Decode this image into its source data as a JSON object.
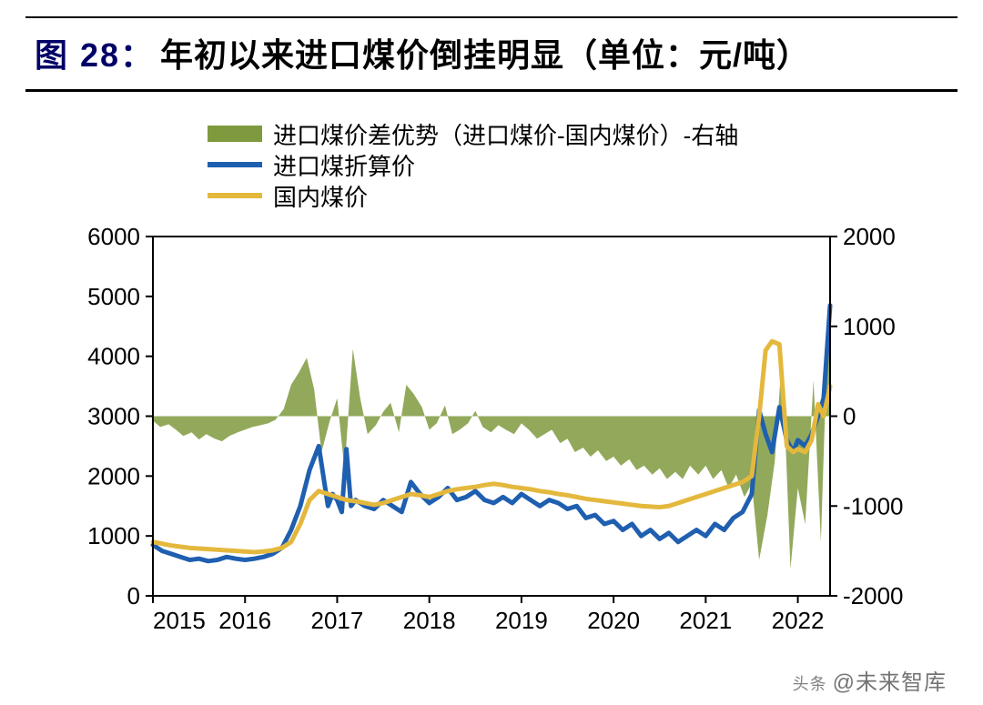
{
  "title": {
    "prefix": "图 28：",
    "text": "年初以来进口煤价倒挂明显（单位：元/吨）",
    "prefix_color": "#000066",
    "text_color": "#000000",
    "fontsize": 36,
    "fontweight": 700
  },
  "legend": {
    "fontsize": 26,
    "items": [
      {
        "kind": "area",
        "label": "进口煤价差优势（进口煤价-国内煤价）-右轴",
        "color": "#7f9a3e"
      },
      {
        "kind": "line",
        "label": "进口煤折算价",
        "color": "#1f5fb0"
      },
      {
        "kind": "line",
        "label": "国内煤价",
        "color": "#e4b83d"
      }
    ]
  },
  "chart": {
    "type": "combo-line-area",
    "background_color": "#ffffff",
    "axis_color": "#000000",
    "axis_width": 2,
    "tick_len": 8,
    "tick_fontsize": 26,
    "x": {
      "min": 2015,
      "max": 2022.35,
      "ticks": [
        2015,
        2016,
        2017,
        2018,
        2019,
        2020,
        2021,
        2022
      ],
      "labels": [
        "2015",
        "2016",
        "2017",
        "2018",
        "2019",
        "2020",
        "2021",
        "2022"
      ]
    },
    "y_left": {
      "min": 0,
      "max": 6000,
      "ticks": [
        0,
        1000,
        2000,
        3000,
        4000,
        5000,
        6000
      ]
    },
    "y_right": {
      "min": -2000,
      "max": 2000,
      "ticks": [
        -2000,
        -1000,
        0,
        1000,
        2000
      ]
    },
    "series_area": {
      "name": "diff",
      "axis": "right",
      "color": "#7f9a3e",
      "opacity": 0.85,
      "baseline": 0,
      "data": [
        [
          2015.0,
          -50
        ],
        [
          2015.08,
          -120
        ],
        [
          2015.17,
          -90
        ],
        [
          2015.25,
          -150
        ],
        [
          2015.33,
          -220
        ],
        [
          2015.42,
          -180
        ],
        [
          2015.5,
          -260
        ],
        [
          2015.58,
          -200
        ],
        [
          2015.67,
          -250
        ],
        [
          2015.75,
          -280
        ],
        [
          2015.83,
          -220
        ],
        [
          2015.92,
          -180
        ],
        [
          2016.0,
          -150
        ],
        [
          2016.08,
          -120
        ],
        [
          2016.17,
          -100
        ],
        [
          2016.25,
          -80
        ],
        [
          2016.33,
          -40
        ],
        [
          2016.42,
          80
        ],
        [
          2016.5,
          350
        ],
        [
          2016.58,
          480
        ],
        [
          2016.67,
          650
        ],
        [
          2016.75,
          300
        ],
        [
          2016.83,
          -400
        ],
        [
          2016.92,
          -50
        ],
        [
          2017.0,
          200
        ],
        [
          2017.08,
          -600
        ],
        [
          2017.17,
          750
        ],
        [
          2017.25,
          200
        ],
        [
          2017.33,
          -200
        ],
        [
          2017.42,
          -100
        ],
        [
          2017.5,
          50
        ],
        [
          2017.58,
          150
        ],
        [
          2017.67,
          -180
        ],
        [
          2017.75,
          350
        ],
        [
          2017.83,
          250
        ],
        [
          2017.92,
          100
        ],
        [
          2018.0,
          -150
        ],
        [
          2018.08,
          -80
        ],
        [
          2018.17,
          120
        ],
        [
          2018.25,
          -200
        ],
        [
          2018.33,
          -150
        ],
        [
          2018.42,
          -80
        ],
        [
          2018.5,
          60
        ],
        [
          2018.58,
          -120
        ],
        [
          2018.67,
          -180
        ],
        [
          2018.75,
          -100
        ],
        [
          2018.83,
          -150
        ],
        [
          2018.92,
          -200
        ],
        [
          2019.0,
          -80
        ],
        [
          2019.08,
          -150
        ],
        [
          2019.17,
          -250
        ],
        [
          2019.25,
          -200
        ],
        [
          2019.33,
          -150
        ],
        [
          2019.42,
          -300
        ],
        [
          2019.5,
          -250
        ],
        [
          2019.58,
          -400
        ],
        [
          2019.67,
          -350
        ],
        [
          2019.75,
          -450
        ],
        [
          2019.83,
          -380
        ],
        [
          2019.92,
          -500
        ],
        [
          2020.0,
          -450
        ],
        [
          2020.08,
          -550
        ],
        [
          2020.17,
          -480
        ],
        [
          2020.25,
          -600
        ],
        [
          2020.33,
          -550
        ],
        [
          2020.42,
          -650
        ],
        [
          2020.5,
          -580
        ],
        [
          2020.58,
          -700
        ],
        [
          2020.67,
          -620
        ],
        [
          2020.75,
          -700
        ],
        [
          2020.83,
          -550
        ],
        [
          2020.92,
          -650
        ],
        [
          2021.0,
          -550
        ],
        [
          2021.08,
          -700
        ],
        [
          2021.17,
          -600
        ],
        [
          2021.25,
          -800
        ],
        [
          2021.33,
          -650
        ],
        [
          2021.42,
          -900
        ],
        [
          2021.5,
          -750
        ],
        [
          2021.58,
          -1600
        ],
        [
          2021.67,
          -1100
        ],
        [
          2021.75,
          -500
        ],
        [
          2021.83,
          700
        ],
        [
          2021.92,
          -1700
        ],
        [
          2022.0,
          -800
        ],
        [
          2022.08,
          -1200
        ],
        [
          2022.17,
          400
        ],
        [
          2022.25,
          -1400
        ],
        [
          2022.3,
          200
        ],
        [
          2022.35,
          1200
        ]
      ]
    },
    "series_lines": [
      {
        "name": "import",
        "axis": "left",
        "color": "#1f5fb0",
        "width": 5,
        "data": [
          [
            2015.0,
            850
          ],
          [
            2015.1,
            750
          ],
          [
            2015.2,
            700
          ],
          [
            2015.3,
            650
          ],
          [
            2015.4,
            600
          ],
          [
            2015.5,
            620
          ],
          [
            2015.6,
            580
          ],
          [
            2015.7,
            600
          ],
          [
            2015.8,
            650
          ],
          [
            2015.9,
            620
          ],
          [
            2016.0,
            600
          ],
          [
            2016.1,
            620
          ],
          [
            2016.2,
            650
          ],
          [
            2016.3,
            700
          ],
          [
            2016.4,
            800
          ],
          [
            2016.5,
            1100
          ],
          [
            2016.6,
            1500
          ],
          [
            2016.7,
            2100
          ],
          [
            2016.8,
            2500
          ],
          [
            2016.85,
            2000
          ],
          [
            2016.9,
            1500
          ],
          [
            2016.95,
            1700
          ],
          [
            2017.0,
            1600
          ],
          [
            2017.05,
            1400
          ],
          [
            2017.1,
            2450
          ],
          [
            2017.15,
            1500
          ],
          [
            2017.2,
            1600
          ],
          [
            2017.3,
            1500
          ],
          [
            2017.4,
            1450
          ],
          [
            2017.5,
            1600
          ],
          [
            2017.6,
            1500
          ],
          [
            2017.7,
            1400
          ],
          [
            2017.8,
            1900
          ],
          [
            2017.9,
            1700
          ],
          [
            2018.0,
            1550
          ],
          [
            2018.1,
            1650
          ],
          [
            2018.2,
            1800
          ],
          [
            2018.3,
            1600
          ],
          [
            2018.4,
            1650
          ],
          [
            2018.5,
            1750
          ],
          [
            2018.6,
            1600
          ],
          [
            2018.7,
            1550
          ],
          [
            2018.8,
            1650
          ],
          [
            2018.9,
            1550
          ],
          [
            2019.0,
            1700
          ],
          [
            2019.1,
            1600
          ],
          [
            2019.2,
            1500
          ],
          [
            2019.3,
            1600
          ],
          [
            2019.4,
            1550
          ],
          [
            2019.5,
            1450
          ],
          [
            2019.6,
            1500
          ],
          [
            2019.7,
            1300
          ],
          [
            2019.8,
            1350
          ],
          [
            2019.9,
            1200
          ],
          [
            2020.0,
            1250
          ],
          [
            2020.1,
            1100
          ],
          [
            2020.2,
            1200
          ],
          [
            2020.3,
            1000
          ],
          [
            2020.4,
            1100
          ],
          [
            2020.5,
            950
          ],
          [
            2020.6,
            1050
          ],
          [
            2020.7,
            900
          ],
          [
            2020.8,
            1000
          ],
          [
            2020.9,
            1100
          ],
          [
            2021.0,
            1000
          ],
          [
            2021.1,
            1200
          ],
          [
            2021.2,
            1100
          ],
          [
            2021.3,
            1300
          ],
          [
            2021.4,
            1400
          ],
          [
            2021.5,
            1700
          ],
          [
            2021.58,
            3100
          ],
          [
            2021.65,
            2700
          ],
          [
            2021.72,
            2400
          ],
          [
            2021.8,
            3150
          ],
          [
            2021.88,
            2600
          ],
          [
            2021.95,
            2400
          ],
          [
            2022.0,
            2600
          ],
          [
            2022.08,
            2500
          ],
          [
            2022.15,
            2700
          ],
          [
            2022.22,
            3000
          ],
          [
            2022.28,
            3300
          ],
          [
            2022.35,
            4850
          ]
        ]
      },
      {
        "name": "domestic",
        "axis": "left",
        "color": "#e4b83d",
        "width": 5,
        "data": [
          [
            2015.0,
            900
          ],
          [
            2015.1,
            870
          ],
          [
            2015.2,
            840
          ],
          [
            2015.3,
            820
          ],
          [
            2015.4,
            800
          ],
          [
            2015.5,
            790
          ],
          [
            2015.6,
            780
          ],
          [
            2015.7,
            770
          ],
          [
            2015.8,
            760
          ],
          [
            2015.9,
            750
          ],
          [
            2016.0,
            740
          ],
          [
            2016.1,
            730
          ],
          [
            2016.2,
            740
          ],
          [
            2016.3,
            760
          ],
          [
            2016.4,
            800
          ],
          [
            2016.5,
            900
          ],
          [
            2016.6,
            1200
          ],
          [
            2016.7,
            1600
          ],
          [
            2016.8,
            1750
          ],
          [
            2016.9,
            1700
          ],
          [
            2017.0,
            1650
          ],
          [
            2017.1,
            1600
          ],
          [
            2017.2,
            1580
          ],
          [
            2017.3,
            1550
          ],
          [
            2017.4,
            1520
          ],
          [
            2017.5,
            1550
          ],
          [
            2017.6,
            1600
          ],
          [
            2017.7,
            1650
          ],
          [
            2017.8,
            1700
          ],
          [
            2017.9,
            1680
          ],
          [
            2018.0,
            1650
          ],
          [
            2018.1,
            1700
          ],
          [
            2018.2,
            1750
          ],
          [
            2018.3,
            1780
          ],
          [
            2018.4,
            1800
          ],
          [
            2018.5,
            1820
          ],
          [
            2018.6,
            1850
          ],
          [
            2018.7,
            1870
          ],
          [
            2018.8,
            1850
          ],
          [
            2018.9,
            1820
          ],
          [
            2019.0,
            1800
          ],
          [
            2019.1,
            1780
          ],
          [
            2019.2,
            1750
          ],
          [
            2019.3,
            1730
          ],
          [
            2019.4,
            1700
          ],
          [
            2019.5,
            1680
          ],
          [
            2019.6,
            1650
          ],
          [
            2019.7,
            1620
          ],
          [
            2019.8,
            1600
          ],
          [
            2019.9,
            1580
          ],
          [
            2020.0,
            1560
          ],
          [
            2020.1,
            1540
          ],
          [
            2020.2,
            1520
          ],
          [
            2020.3,
            1500
          ],
          [
            2020.4,
            1490
          ],
          [
            2020.5,
            1480
          ],
          [
            2020.6,
            1500
          ],
          [
            2020.7,
            1550
          ],
          [
            2020.8,
            1600
          ],
          [
            2020.9,
            1650
          ],
          [
            2021.0,
            1700
          ],
          [
            2021.1,
            1750
          ],
          [
            2021.2,
            1800
          ],
          [
            2021.3,
            1850
          ],
          [
            2021.4,
            1900
          ],
          [
            2021.5,
            2000
          ],
          [
            2021.58,
            3000
          ],
          [
            2021.65,
            4100
          ],
          [
            2021.72,
            4250
          ],
          [
            2021.8,
            4200
          ],
          [
            2021.88,
            2500
          ],
          [
            2021.95,
            2400
          ],
          [
            2022.0,
            2450
          ],
          [
            2022.08,
            2400
          ],
          [
            2022.15,
            2600
          ],
          [
            2022.22,
            3200
          ],
          [
            2022.28,
            3000
          ],
          [
            2022.35,
            3500
          ]
        ]
      }
    ]
  },
  "watermark": {
    "prefix": "头条",
    "text": "@未来智库",
    "color": "rgba(0,0,0,0.55)"
  }
}
